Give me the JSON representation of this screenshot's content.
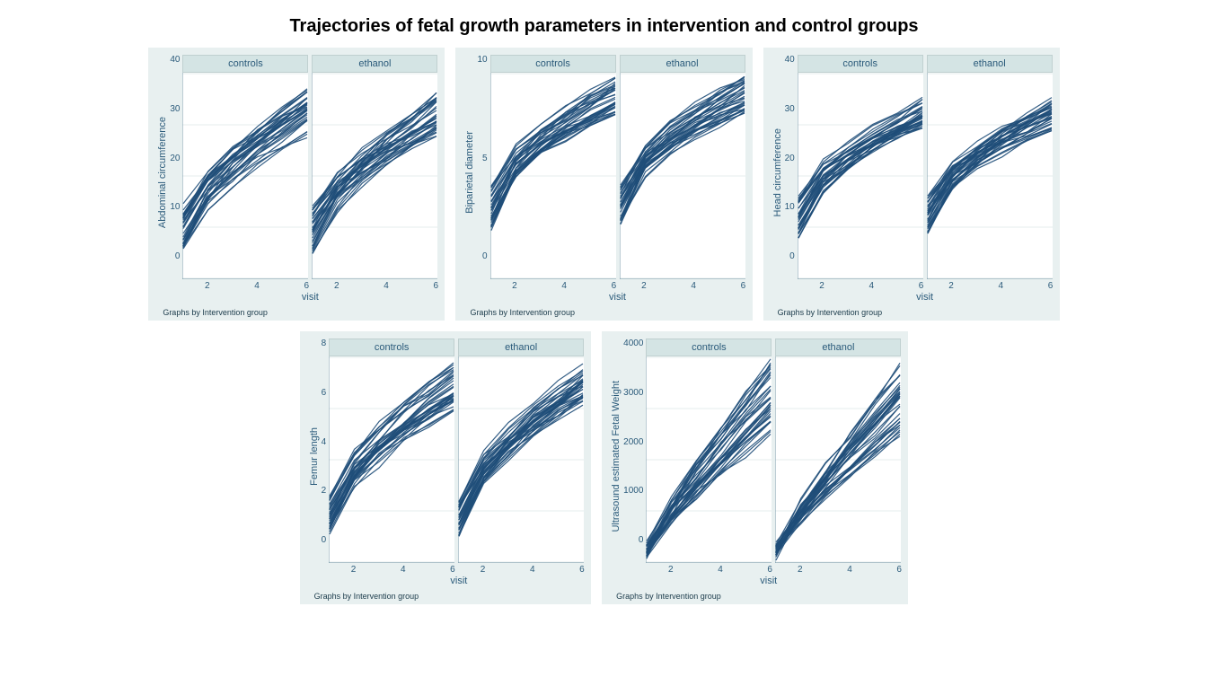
{
  "title": "Trajectories of fetal growth parameters in intervention and control groups",
  "global": {
    "xlabel": "visit",
    "xlim": [
      1,
      6
    ],
    "xticks": [
      2,
      4,
      6
    ],
    "sub_labels": [
      "controls",
      "ethanol"
    ],
    "caption": "Graphs by Intervention group",
    "panel_bg": "#e8f0f0",
    "header_bg": "#d4e4e4",
    "plot_bg": "#ffffff",
    "grid_color": "#e4ecec",
    "line_color": "#1f4e79",
    "line_width": 1.2,
    "text_color": "#2a5a7a",
    "title_fontsize": 20,
    "label_fontsize": 11,
    "tick_fontsize": 10,
    "caption_fontsize": 9,
    "n_series_per_subpanel": 35,
    "subpanel_width": 140,
    "subpanel_height": 230
  },
  "panels": [
    {
      "id": "ac",
      "ylabel": "Abdominal circumference",
      "ylim": [
        0,
        40
      ],
      "yticks": [
        0,
        10,
        20,
        30,
        40
      ],
      "traj": {
        "controls": {
          "start_lo": 5,
          "start_hi": 15,
          "end_lo": 28,
          "end_hi": 37,
          "curve": 0.55
        },
        "ethanol": {
          "start_lo": 5,
          "start_hi": 15,
          "end_lo": 28,
          "end_hi": 37,
          "curve": 0.55
        }
      }
    },
    {
      "id": "bpd",
      "ylabel": "Biparietal diameter",
      "ylim": [
        0,
        10
      ],
      "yticks": [
        0,
        5,
        10
      ],
      "traj": {
        "controls": {
          "start_lo": 2.5,
          "start_hi": 4.5,
          "end_lo": 8.0,
          "end_hi": 9.8,
          "curve": 0.75
        },
        "ethanol": {
          "start_lo": 2.5,
          "start_hi": 4.5,
          "end_lo": 8.0,
          "end_hi": 9.8,
          "curve": 0.75
        }
      }
    },
    {
      "id": "hc",
      "ylabel": "Head circumference",
      "ylim": [
        0,
        40
      ],
      "yticks": [
        0,
        10,
        20,
        30,
        40
      ],
      "traj": {
        "controls": {
          "start_lo": 8,
          "start_hi": 16,
          "end_lo": 29,
          "end_hi": 35,
          "curve": 0.7
        },
        "ethanol": {
          "start_lo": 8,
          "start_hi": 16,
          "end_lo": 29,
          "end_hi": 35,
          "curve": 0.7
        }
      }
    },
    {
      "id": "fl",
      "ylabel": "Femur length",
      "ylim": [
        0,
        8
      ],
      "yticks": [
        0,
        2,
        4,
        6,
        8
      ],
      "traj": {
        "controls": {
          "start_lo": 1.0,
          "start_hi": 2.5,
          "end_lo": 6.0,
          "end_hi": 7.8,
          "curve": 0.6
        },
        "ethanol": {
          "start_lo": 1.0,
          "start_hi": 2.5,
          "end_lo": 6.0,
          "end_hi": 7.8,
          "curve": 0.6
        }
      }
    },
    {
      "id": "efw",
      "ylabel": "Ultrasound estimated Fetal Weight",
      "ylim": [
        0,
        4000
      ],
      "yticks": [
        0,
        1000,
        2000,
        3000,
        4000
      ],
      "traj": {
        "controls": {
          "start_lo": 100,
          "start_hi": 350,
          "end_lo": 2400,
          "end_hi": 3900,
          "curve": 0.25
        },
        "ethanol": {
          "start_lo": 100,
          "start_hi": 350,
          "end_lo": 2400,
          "end_hi": 3900,
          "curve": 0.25
        }
      }
    }
  ]
}
